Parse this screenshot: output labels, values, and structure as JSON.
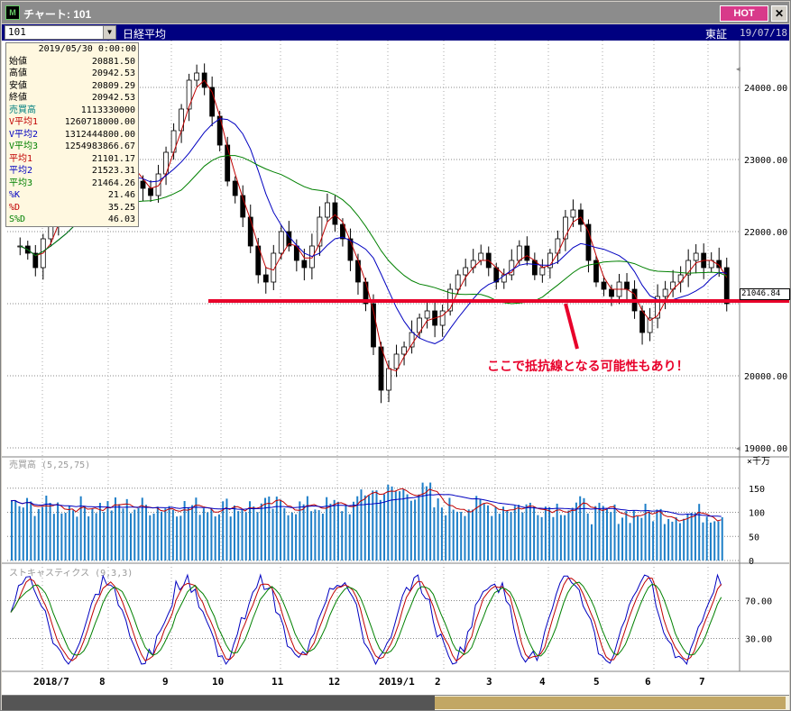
{
  "window": {
    "title": "チャート: 101",
    "hot_label": "HOT",
    "close_label": "✕"
  },
  "header": {
    "code": "101",
    "name": "日経平均",
    "market": "東証",
    "date": "19/07/18"
  },
  "info": {
    "date": "2019/05/30 0:00:00",
    "rows": [
      {
        "label": "始値",
        "value": "20881.50",
        "color": "#000000"
      },
      {
        "label": "高値",
        "value": "20942.53",
        "color": "#000000"
      },
      {
        "label": "安値",
        "value": "20809.29",
        "color": "#000000"
      },
      {
        "label": "終値",
        "value": "20942.53",
        "color": "#000000"
      },
      {
        "label": "売買高",
        "value": "1113330000",
        "color": "#008080"
      },
      {
        "label": "V平均1",
        "value": "1260718000.00",
        "color": "#c00000"
      },
      {
        "label": "V平均2",
        "value": "1312444800.00",
        "color": "#0000c0"
      },
      {
        "label": "V平均3",
        "value": "1254983866.67",
        "color": "#008000"
      },
      {
        "label": "平均1",
        "value": "21101.17",
        "color": "#c00000"
      },
      {
        "label": "平均2",
        "value": "21523.31",
        "color": "#0000c0"
      },
      {
        "label": "平均3",
        "value": "21464.26",
        "color": "#008000"
      },
      {
        "label": "%K",
        "value": "21.46",
        "color": "#0000c0"
      },
      {
        "label": "%D",
        "value": "35.25",
        "color": "#c00000"
      },
      {
        "label": "S%D",
        "value": "46.03",
        "color": "#008000"
      }
    ]
  },
  "annotation": "ここで抵抗線となる可能性もあり！",
  "price_axis": {
    "labels": [
      "24000.00",
      "23000.00",
      "22000.00",
      "20000.00",
      "19000.00"
    ],
    "current_label": "21046.84"
  },
  "volume_panel": {
    "title": "売買高 (5,25,75)",
    "unit": "×千万",
    "labels": [
      "150",
      "100",
      "50",
      "0"
    ]
  },
  "stoch_panel": {
    "title": "ストキャスティクス (9,3,3)",
    "labels": [
      "70.00",
      "30.00"
    ]
  },
  "x_axis": {
    "labels": [
      "2018/7",
      "8",
      "9",
      "10",
      "11",
      "12",
      "2019/1",
      "2",
      "3",
      "4",
      "5",
      "6",
      "7"
    ]
  },
  "colors": {
    "up": "#000000",
    "down": "#000000",
    "ma1": "#c00000",
    "ma2": "#0000c0",
    "ma3": "#008000",
    "volume": "#1e7fc8",
    "resistance": "#e8002a"
  },
  "chart_data": {
    "type": "candlestick",
    "ylim": [
      18900,
      24500
    ],
    "resistance_level": 21000,
    "close_series": [
      21800,
      21700,
      21500,
      21900,
      22100,
      22300,
      22500,
      22800,
      22900,
      22700,
      22400,
      22600,
      22800,
      23000,
      22900,
      22700,
      22600,
      22500,
      22800,
      23100,
      23400,
      23700,
      24100,
      24200,
      24000,
      23600,
      23200,
      22700,
      22500,
      22200,
      21800,
      21400,
      21300,
      21700,
      22000,
      21800,
      21600,
      21500,
      21800,
      22200,
      22400,
      22100,
      21900,
      21600,
      21300,
      21000,
      20400,
      19800,
      20100,
      20300,
      20400,
      20600,
      20800,
      20900,
      20700,
      20900,
      21200,
      21400,
      21500,
      21600,
      21700,
      21500,
      21300,
      21400,
      21600,
      21800,
      21600,
      21400,
      21500,
      21700,
      21900,
      22200,
      22300,
      22100,
      21600,
      21300,
      21200,
      21100,
      21300,
      21200,
      20900,
      20600,
      20800,
      21100,
      21200,
      21300,
      21400,
      21600,
      21700,
      21500,
      21600,
      21500,
      21000
    ]
  }
}
